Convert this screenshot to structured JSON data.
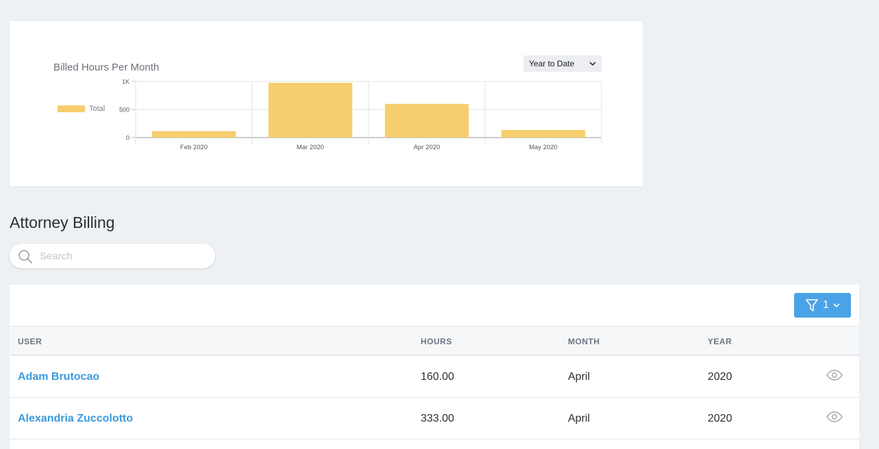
{
  "chart_data": {
    "type": "bar",
    "title": "Billed Hours Per Month",
    "categories": [
      "Feb 2020",
      "Mar 2020",
      "Apr 2020",
      "May 2020"
    ],
    "series": [
      {
        "name": "Total",
        "values": [
          115,
          975,
          600,
          135
        ],
        "color": "#f7ce6e"
      }
    ],
    "ylim": [
      0,
      1000
    ],
    "yticks": [
      {
        "value": 0,
        "label": "0"
      },
      {
        "value": 500,
        "label": "500"
      },
      {
        "value": 1000,
        "label": "1K"
      }
    ],
    "legend_position": "left",
    "grid": true
  },
  "chart_controls": {
    "period_label": "Year to Date"
  },
  "section": {
    "title": "Attorney Billing"
  },
  "search": {
    "placeholder": "Search",
    "value": ""
  },
  "toolbar": {
    "filter_count": "1"
  },
  "table": {
    "headers": {
      "user": "USER",
      "hours": "HOURS",
      "month": "MONTH",
      "year": "YEAR"
    },
    "rows": [
      {
        "user": "Adam Brutocao",
        "hours": "160.00",
        "month": "April",
        "year": "2020"
      },
      {
        "user": "Alexandria Zuccolotto",
        "hours": "333.00",
        "month": "April",
        "year": "2020"
      }
    ]
  },
  "colors": {
    "accent": "#4aa3e6",
    "link": "#3a9bdc",
    "bar": "#f7ce6e",
    "background": "#eef1f4"
  }
}
